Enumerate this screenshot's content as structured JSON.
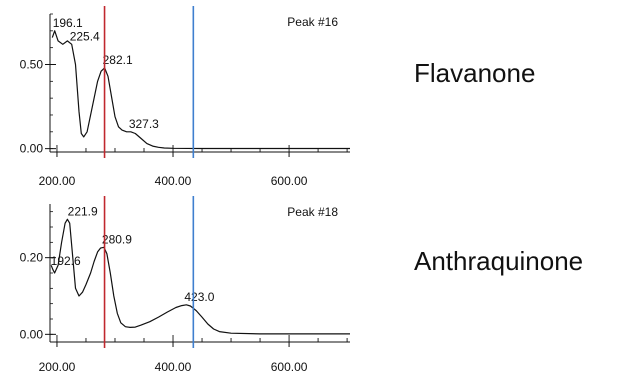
{
  "compounds": {
    "top": "Flavanone",
    "bottom": "Anthraquinone"
  },
  "chart_data": [
    {
      "type": "line",
      "peak_label": "Peak #16",
      "xlim": [
        188,
        705
      ],
      "ylim": [
        -0.02,
        0.8
      ],
      "x_ticks": [
        200,
        400,
        600
      ],
      "x_tick_labels": [
        "200.00",
        "400.00",
        "600.00"
      ],
      "y_ticks": [
        0.0,
        0.5
      ],
      "y_tick_labels": [
        "0.00",
        "0.50"
      ],
      "series": [
        {
          "x": [
            192,
            196.1,
            202,
            210,
            218,
            225.4,
            232,
            238,
            242,
            246,
            252,
            258,
            264,
            270,
            276,
            282.1,
            288,
            294,
            300,
            306,
            312,
            320,
            327.3,
            335,
            345,
            355,
            365,
            375,
            385,
            400,
            450,
            500,
            550,
            600,
            650,
            705
          ],
          "y": [
            0.66,
            0.7,
            0.64,
            0.62,
            0.64,
            0.62,
            0.5,
            0.22,
            0.09,
            0.07,
            0.1,
            0.2,
            0.3,
            0.4,
            0.46,
            0.48,
            0.43,
            0.31,
            0.19,
            0.13,
            0.11,
            0.1,
            0.1,
            0.09,
            0.06,
            0.03,
            0.015,
            0.008,
            0.004,
            0.002,
            0.001,
            0.001,
            0.001,
            0.001,
            0.001,
            0.001
          ]
        }
      ],
      "annotations": [
        {
          "text": "196.1",
          "x": 196.1,
          "y": 0.7
        },
        {
          "text": "225.4",
          "x": 225.4,
          "y": 0.62
        },
        {
          "text": "282.1",
          "x": 282.1,
          "y": 0.48
        },
        {
          "text": "327.3",
          "x": 327.3,
          "y": 0.1
        }
      ],
      "vlines": [
        {
          "x": 282,
          "color": "#c0282e"
        },
        {
          "x": 435,
          "color": "#3f7fcf"
        }
      ],
      "grid": false
    },
    {
      "type": "line",
      "peak_label": "Peak #18",
      "xlim": [
        188,
        705
      ],
      "ylim": [
        -0.02,
        0.34
      ],
      "x_ticks": [
        200,
        400,
        600
      ],
      "x_tick_labels": [
        "200.00",
        "400.00",
        "600.00"
      ],
      "y_ticks": [
        0.0,
        0.2
      ],
      "y_tick_labels": [
        "0.00",
        "0.20"
      ],
      "series": [
        {
          "x": [
            190,
            192.6,
            196,
            202,
            208,
            214,
            218,
            221.9,
            226,
            232,
            238,
            244,
            250,
            258,
            264,
            270,
            275,
            280.9,
            286,
            292,
            298,
            304,
            310,
            318,
            326,
            335,
            345,
            360,
            375,
            390,
            405,
            415,
            423,
            430,
            440,
            450,
            460,
            470,
            480,
            500,
            550,
            600,
            650,
            705
          ],
          "y": [
            0.18,
            0.17,
            0.16,
            0.18,
            0.24,
            0.29,
            0.3,
            0.29,
            0.22,
            0.12,
            0.1,
            0.11,
            0.13,
            0.16,
            0.19,
            0.215,
            0.225,
            0.227,
            0.21,
            0.16,
            0.1,
            0.055,
            0.03,
            0.02,
            0.018,
            0.019,
            0.024,
            0.033,
            0.045,
            0.058,
            0.07,
            0.075,
            0.077,
            0.074,
            0.062,
            0.045,
            0.027,
            0.014,
            0.007,
            0.003,
            0.001,
            0.001,
            0.001,
            0.001
          ]
        }
      ],
      "annotations": [
        {
          "text": "221.9",
          "x": 221.9,
          "y": 0.3
        },
        {
          "text": "192.6",
          "x": 192.6,
          "y": 0.17
        },
        {
          "text": "280.9",
          "x": 280.9,
          "y": 0.227
        },
        {
          "text": "423.0",
          "x": 423.0,
          "y": 0.077
        }
      ],
      "vlines": [
        {
          "x": 282,
          "color": "#c0282e"
        },
        {
          "x": 435,
          "color": "#3f7fcf"
        }
      ],
      "grid": false
    }
  ]
}
